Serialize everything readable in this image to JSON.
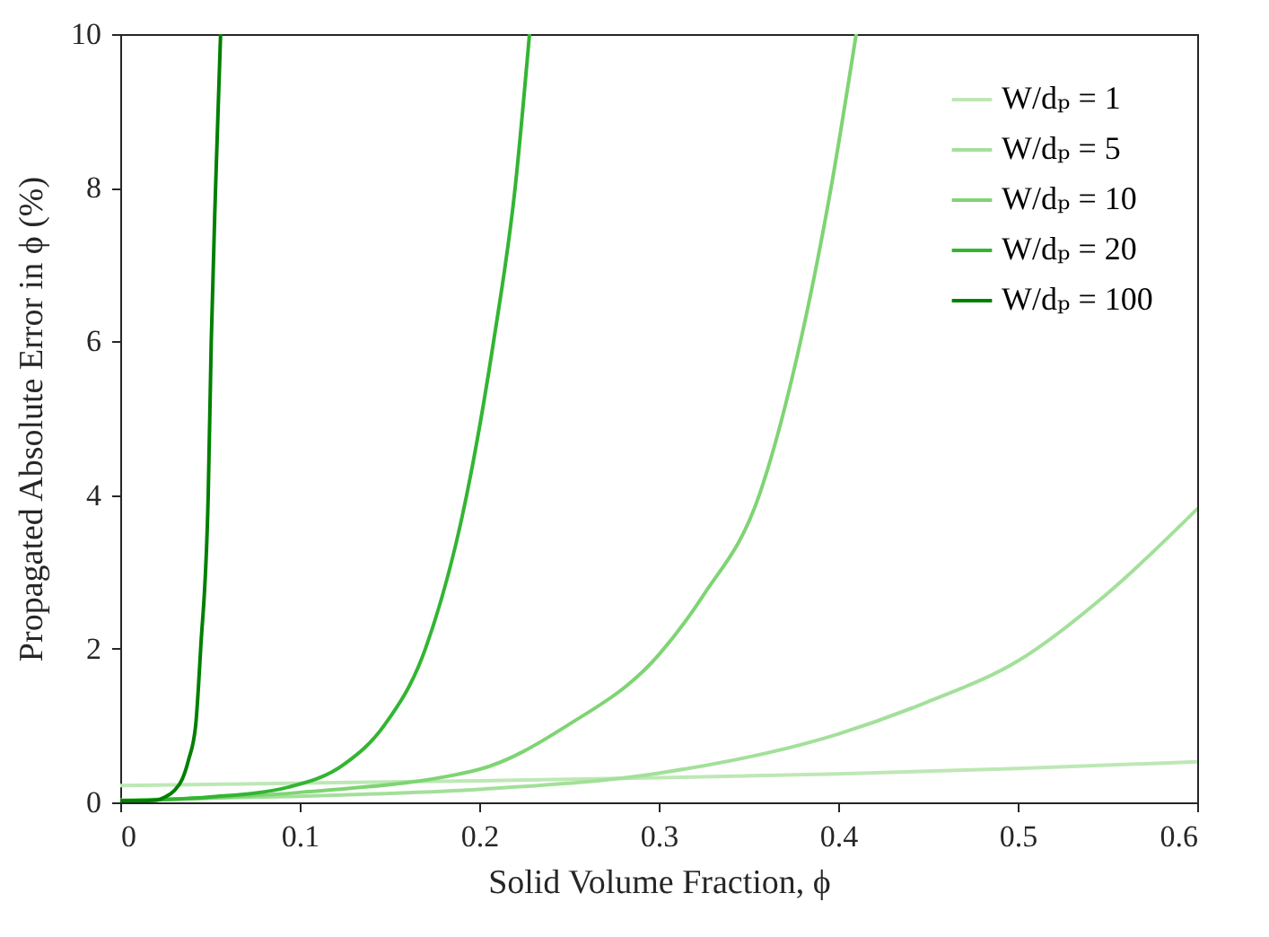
{
  "chart_data": {
    "type": "line",
    "xlabel": "Solid Volume Fraction, ϕ",
    "ylabel": "Propagated Absolute Error in ϕ (%)",
    "xlim": [
      0,
      0.6
    ],
    "ylim": [
      0,
      10
    ],
    "xticks": [
      0,
      0.1,
      0.2,
      0.3,
      0.4,
      0.5,
      0.6
    ],
    "yticks": [
      0,
      2,
      4,
      6,
      8,
      10
    ],
    "grid": false,
    "legend": "top right",
    "marker": "none",
    "line_style": "solid",
    "series": [
      {
        "name": "W/dₚ = 1",
        "color": "#bde8b5",
        "x": [
          0,
          0.1,
          0.2,
          0.3,
          0.4,
          0.5,
          0.6
        ],
        "values": [
          0.22,
          0.25,
          0.28,
          0.32,
          0.37,
          0.44,
          0.53
        ]
      },
      {
        "name": "W/dₚ = 5",
        "color": "#a3e09a",
        "x": [
          0,
          0.1,
          0.2,
          0.3,
          0.4,
          0.45,
          0.5,
          0.55,
          0.6
        ],
        "values": [
          0.03,
          0.08,
          0.17,
          0.38,
          0.89,
          1.31,
          1.84,
          2.72,
          3.82
        ]
      },
      {
        "name": "W/dₚ = 10",
        "color": "#7fd474",
        "x": [
          0,
          0.1,
          0.2,
          0.249,
          0.3,
          0.325,
          0.356,
          0.379,
          0.396,
          0.41
        ],
        "values": [
          0.02,
          0.13,
          0.43,
          1.0,
          1.92,
          2.7,
          4,
          6,
          8,
          10
        ]
      },
      {
        "name": "W/dₚ = 20",
        "color": "#33b533",
        "x": [
          0,
          0.05,
          0.094,
          0.125,
          0.147,
          0.17,
          0.193,
          0.208,
          0.22,
          0.228
        ],
        "values": [
          0.02,
          0.07,
          0.2,
          0.5,
          1,
          2,
          4,
          6,
          8,
          10
        ]
      },
      {
        "name": "W/dₚ = 100",
        "color": "#008000",
        "x": [
          0,
          0.01,
          0.02,
          0.025,
          0.03,
          0.0345,
          0.038,
          0.042,
          0.0448,
          0.049,
          0.0507,
          0.0531,
          0.0559
        ],
        "values": [
          0.02,
          0.02,
          0.03,
          0.07,
          0.15,
          0.3,
          0.55,
          1,
          2,
          4,
          6,
          8,
          10
        ]
      }
    ]
  }
}
